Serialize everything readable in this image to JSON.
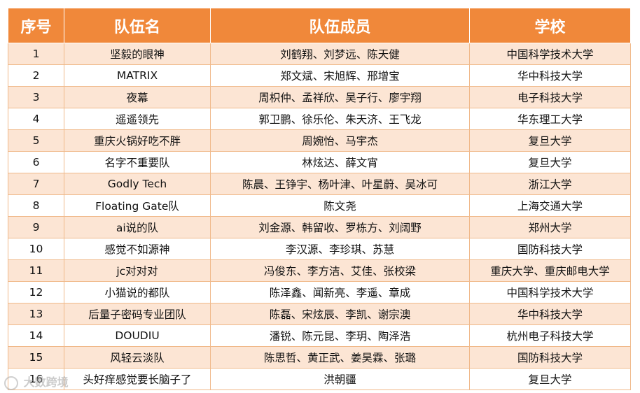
{
  "table": {
    "headers": [
      "序号",
      "队伍名",
      "队伍成员",
      "学校"
    ],
    "rows": [
      [
        "1",
        "坚毅的眼神",
        "刘鹤翔、刘梦远、陈天健",
        "中国科学技术大学"
      ],
      [
        "2",
        "MATRIX",
        "郑文斌、宋旭辉、邢增宝",
        "华中科技大学"
      ],
      [
        "3",
        "夜幕",
        "周枳仲、孟祥欣、吴子行、廖宇翔",
        "电子科技大学"
      ],
      [
        "4",
        "遥遥领先",
        "郭卫鹏、徐乐伦、朱天济、王飞龙",
        "华东理工大学"
      ],
      [
        "5",
        "重庆火锅好吃不胖",
        "周婉怡、马宇杰",
        "复旦大学"
      ],
      [
        "6",
        "名字不重要队",
        "林炫达、薛文宵",
        "复旦大学"
      ],
      [
        "7",
        "Godly Tech",
        "陈晨、王铮宇、杨叶津、叶星蔚、吴冰可",
        "浙江大学"
      ],
      [
        "8",
        "Floating Gate队",
        "陈文尧",
        "上海交通大学"
      ],
      [
        "9",
        "ai说的队",
        "刘金源、韩留收、罗栋方、刘阔野",
        "郑州大学"
      ],
      [
        "10",
        "感觉不如源神",
        "李汉源、李珍琪、苏慧",
        "国防科技大学"
      ],
      [
        "11",
        "jc对对对",
        "冯俊东、李方洁、艾佳、张校梁",
        "重庆大学、重庆邮电大学"
      ],
      [
        "12",
        "小猫说的都队",
        "陈泽鑫、闻新亮、李遥、章成",
        "中国科学技术大学"
      ],
      [
        "13",
        "后量子密码专业团队",
        "陈磊、宋炫辰、李凯、谢宗澳",
        "华中科技大学"
      ],
      [
        "14",
        "DOUDIU",
        "潘锐、陈元昆、李玥、陶泽浩",
        "杭州电子科技大学"
      ],
      [
        "15",
        "风轻云淡队",
        "陈思哲、黄正武、姜昊霖、张璐",
        "国防科技大学"
      ],
      [
        "16",
        "头好痒感觉要长脑子了",
        "洪朝疆",
        "复旦大学"
      ]
    ]
  },
  "watermark": {
    "text": "大数跨境"
  }
}
